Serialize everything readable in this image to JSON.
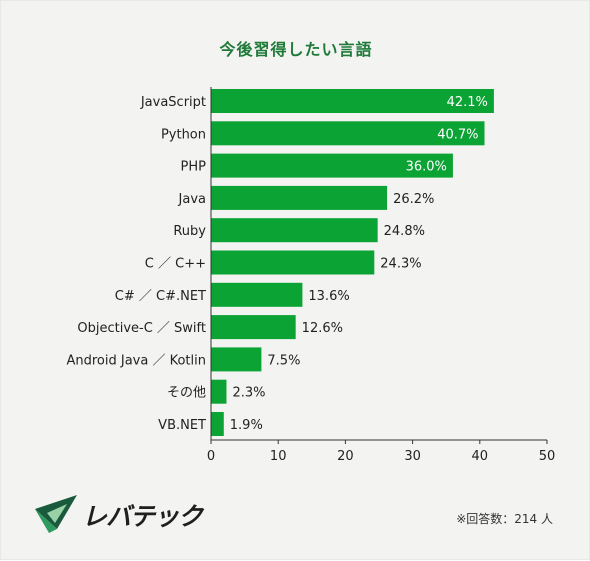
{
  "chart_data": {
    "type": "bar",
    "orientation": "horizontal",
    "title": "今後習得したい言語",
    "categories": [
      "JavaScript",
      "Python",
      "PHP",
      "Java",
      "Ruby",
      "C ／ C++",
      "C# ／ C#.NET",
      "Objective-C ／ Swift",
      "Android Java ／ Kotlin",
      "その他",
      "VB.NET"
    ],
    "values": [
      42.1,
      40.7,
      36.0,
      26.2,
      24.8,
      24.3,
      13.6,
      12.6,
      7.5,
      2.3,
      1.9
    ],
    "value_labels": [
      "42.1%",
      "40.7%",
      "36.0%",
      "26.2%",
      "24.8%",
      "24.3%",
      "13.6%",
      "12.6%",
      "7.5%",
      "2.3%",
      "1.9%"
    ],
    "xlim": [
      0,
      50
    ],
    "xticks": [
      0,
      10,
      20,
      30,
      40,
      50
    ],
    "grid": false,
    "bar_color": "#0aa334",
    "label_color_inside": "#ffffff",
    "label_color_outside": "#222222"
  },
  "footnote": "※回答数：214 人",
  "logo": {
    "text": "レバテック",
    "icon": "levtech-logo-icon"
  }
}
